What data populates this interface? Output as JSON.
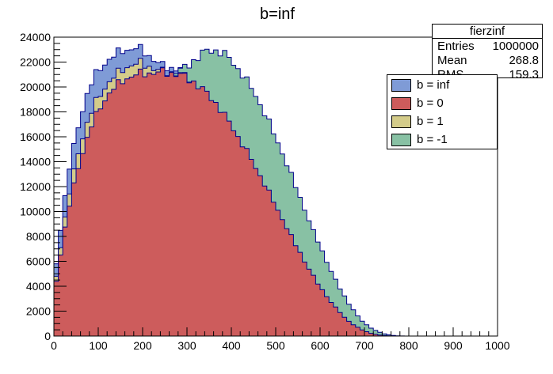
{
  "chart_data": {
    "type": "stacked-step-histogram",
    "title": "b=inf",
    "xlabel": "",
    "ylabel": "",
    "xlim": [
      0,
      1000
    ],
    "ylim": [
      0,
      24000
    ],
    "bin_width": 10,
    "xticks": [
      0,
      100,
      200,
      300,
      400,
      500,
      600,
      700,
      800,
      900,
      1000
    ],
    "yticks": [
      0,
      2000,
      4000,
      6000,
      8000,
      10000,
      12000,
      14000,
      16000,
      18000,
      20000,
      22000,
      24000
    ],
    "series": [
      {
        "name": "b = inf",
        "color": "#7f9bd6",
        "anchors": [
          [
            0,
            5800
          ],
          [
            10,
            8600
          ],
          [
            20,
            11200
          ],
          [
            30,
            13500
          ],
          [
            40,
            15200
          ],
          [
            50,
            16800
          ],
          [
            60,
            18200
          ],
          [
            70,
            19400
          ],
          [
            80,
            20300
          ],
          [
            90,
            21000
          ],
          [
            100,
            21500
          ],
          [
            110,
            21900
          ],
          [
            120,
            22200
          ],
          [
            130,
            22500
          ],
          [
            140,
            22700
          ],
          [
            150,
            22950
          ],
          [
            160,
            23000
          ],
          [
            170,
            23050
          ],
          [
            180,
            23100
          ],
          [
            190,
            23000
          ],
          [
            200,
            22800
          ],
          [
            210,
            22500
          ],
          [
            220,
            22200
          ],
          [
            230,
            21900
          ],
          [
            240,
            21700
          ],
          [
            250,
            21600
          ],
          [
            260,
            21500
          ],
          [
            270,
            21500
          ],
          [
            280,
            21400
          ],
          [
            290,
            21300
          ],
          [
            300,
            21050
          ]
        ]
      },
      {
        "name": "b = 0",
        "color": "#cd5c5c",
        "anchors": [
          [
            0,
            4400
          ],
          [
            10,
            6600
          ],
          [
            20,
            8700
          ],
          [
            30,
            10500
          ],
          [
            40,
            12100
          ],
          [
            50,
            13500
          ],
          [
            60,
            14800
          ],
          [
            70,
            15900
          ],
          [
            80,
            16900
          ],
          [
            90,
            17700
          ],
          [
            100,
            18400
          ],
          [
            110,
            19000
          ],
          [
            120,
            19500
          ],
          [
            130,
            19900
          ],
          [
            140,
            20200
          ],
          [
            150,
            20500
          ],
          [
            160,
            20700
          ],
          [
            170,
            20850
          ],
          [
            180,
            21000
          ],
          [
            190,
            21050
          ],
          [
            200,
            21100
          ],
          [
            210,
            21100
          ],
          [
            220,
            21150
          ],
          [
            230,
            21150
          ],
          [
            240,
            21200
          ],
          [
            250,
            21150
          ],
          [
            260,
            21100
          ],
          [
            270,
            21050
          ],
          [
            280,
            20950
          ],
          [
            290,
            20850
          ],
          [
            300,
            20600
          ],
          [
            310,
            20400
          ],
          [
            320,
            20100
          ],
          [
            330,
            19800
          ],
          [
            340,
            19500
          ],
          [
            350,
            19100
          ],
          [
            360,
            18700
          ],
          [
            370,
            18200
          ],
          [
            380,
            17700
          ],
          [
            390,
            17200
          ],
          [
            400,
            16600
          ],
          [
            410,
            16000
          ],
          [
            420,
            15400
          ],
          [
            430,
            14800
          ],
          [
            440,
            14200
          ],
          [
            450,
            13500
          ],
          [
            460,
            12900
          ],
          [
            470,
            12200
          ],
          [
            480,
            11500
          ],
          [
            490,
            10800
          ],
          [
            500,
            10100
          ],
          [
            510,
            9400
          ],
          [
            520,
            8700
          ],
          [
            530,
            8000
          ],
          [
            540,
            7300
          ],
          [
            550,
            6700
          ],
          [
            560,
            6000
          ],
          [
            570,
            5400
          ],
          [
            580,
            4800
          ],
          [
            590,
            4200
          ],
          [
            600,
            3700
          ],
          [
            610,
            3200
          ],
          [
            620,
            2700
          ],
          [
            630,
            2300
          ],
          [
            640,
            1900
          ],
          [
            650,
            1500
          ],
          [
            660,
            1200
          ],
          [
            670,
            900
          ],
          [
            680,
            700
          ],
          [
            690,
            500
          ],
          [
            700,
            350
          ],
          [
            710,
            220
          ],
          [
            720,
            140
          ],
          [
            730,
            80
          ],
          [
            740,
            40
          ],
          [
            750,
            20
          ],
          [
            760,
            5
          ]
        ]
      },
      {
        "name": "b = 1",
        "color": "#d4cc8a",
        "anchors": [
          [
            0,
            4800
          ],
          [
            10,
            7200
          ],
          [
            20,
            9500
          ],
          [
            30,
            11500
          ],
          [
            40,
            13200
          ],
          [
            50,
            14700
          ],
          [
            60,
            16000
          ],
          [
            70,
            17100
          ],
          [
            80,
            18000
          ],
          [
            90,
            18800
          ],
          [
            100,
            19400
          ],
          [
            110,
            19950
          ],
          [
            120,
            20400
          ],
          [
            130,
            20800
          ],
          [
            140,
            21100
          ],
          [
            150,
            21400
          ],
          [
            160,
            21600
          ],
          [
            170,
            21750
          ],
          [
            180,
            21850
          ],
          [
            190,
            21900
          ],
          [
            200,
            21800
          ],
          [
            210,
            21650
          ],
          [
            220,
            21450
          ],
          [
            230,
            21350
          ],
          [
            240,
            21250
          ],
          [
            250,
            21200
          ],
          [
            260,
            21150
          ],
          [
            270,
            21100
          ],
          [
            280,
            21000
          ],
          [
            290,
            20900
          ],
          [
            300,
            20650
          ]
        ]
      },
      {
        "name": "b = -1",
        "color": "#88c1a4",
        "anchors": [
          [
            270,
            21300
          ],
          [
            280,
            21350
          ],
          [
            290,
            21550
          ],
          [
            300,
            21800
          ],
          [
            310,
            22100
          ],
          [
            320,
            22400
          ],
          [
            330,
            22700
          ],
          [
            340,
            22850
          ],
          [
            350,
            22950
          ],
          [
            360,
            22900
          ],
          [
            370,
            22800
          ],
          [
            380,
            22600
          ],
          [
            390,
            22300
          ],
          [
            400,
            21900
          ],
          [
            410,
            21450
          ],
          [
            420,
            21000
          ],
          [
            430,
            20450
          ],
          [
            440,
            19900
          ],
          [
            450,
            19300
          ],
          [
            460,
            18600
          ],
          [
            470,
            17900
          ],
          [
            480,
            17100
          ],
          [
            490,
            16300
          ],
          [
            500,
            15500
          ],
          [
            510,
            14700
          ],
          [
            520,
            13800
          ],
          [
            530,
            12900
          ],
          [
            540,
            12000
          ],
          [
            550,
            11100
          ],
          [
            560,
            10200
          ],
          [
            570,
            9300
          ],
          [
            580,
            8400
          ],
          [
            590,
            7600
          ],
          [
            600,
            6800
          ],
          [
            610,
            6000
          ],
          [
            620,
            5200
          ],
          [
            630,
            4500
          ],
          [
            640,
            3800
          ],
          [
            650,
            3200
          ],
          [
            660,
            2600
          ],
          [
            670,
            2100
          ],
          [
            680,
            1600
          ],
          [
            690,
            1200
          ],
          [
            700,
            900
          ],
          [
            710,
            650
          ],
          [
            720,
            450
          ],
          [
            730,
            300
          ],
          [
            740,
            180
          ],
          [
            750,
            100
          ],
          [
            760,
            50
          ],
          [
            770,
            20
          ],
          [
            780,
            5
          ]
        ]
      }
    ],
    "stats_box": {
      "title": "fierzinf",
      "rows": [
        {
          "label": "Entries",
          "value": "1000000"
        },
        {
          "label": "Mean",
          "value": "268.8"
        },
        {
          "label": "RMS",
          "value": "159.3"
        }
      ]
    },
    "legend_position": "top-right",
    "legend_order": [
      "b = inf",
      "b = 0",
      "b = 1",
      "b = -1"
    ]
  }
}
